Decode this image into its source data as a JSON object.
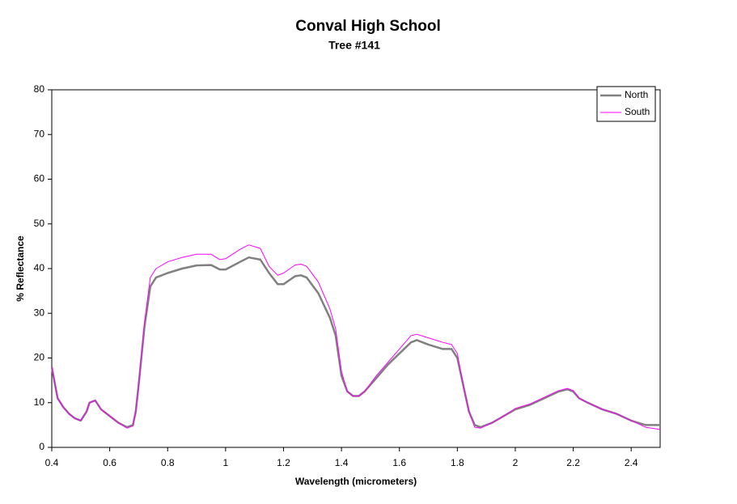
{
  "chart_data": {
    "type": "line",
    "title": "Conval High School",
    "subtitle": "Tree #141",
    "xlabel": "Wavelength (micrometers)",
    "ylabel": "% Reflectance",
    "x": [
      0.4,
      0.42,
      0.44,
      0.46,
      0.48,
      0.5,
      0.52,
      0.53,
      0.55,
      0.57,
      0.6,
      0.63,
      0.66,
      0.68,
      0.69,
      0.7,
      0.72,
      0.74,
      0.76,
      0.8,
      0.85,
      0.9,
      0.95,
      0.98,
      1.0,
      1.05,
      1.08,
      1.12,
      1.15,
      1.18,
      1.2,
      1.24,
      1.26,
      1.28,
      1.32,
      1.36,
      1.38,
      1.4,
      1.42,
      1.44,
      1.46,
      1.48,
      1.52,
      1.56,
      1.6,
      1.64,
      1.66,
      1.7,
      1.75,
      1.78,
      1.8,
      1.82,
      1.84,
      1.86,
      1.88,
      1.92,
      1.96,
      2.0,
      2.05,
      2.1,
      2.15,
      2.18,
      2.2,
      2.22,
      2.25,
      2.3,
      2.35,
      2.4,
      2.45,
      2.5
    ],
    "series": [
      {
        "name": "North",
        "color": "#808080",
        "values": [
          18,
          11,
          9,
          7.5,
          6.5,
          6,
          8,
          10,
          10.5,
          8.5,
          7,
          5.5,
          4.5,
          5,
          8,
          14,
          27,
          36,
          38,
          39,
          40,
          40.7,
          40.8,
          39.8,
          39.8,
          41.5,
          42.5,
          42,
          39,
          36.5,
          36.5,
          38.3,
          38.5,
          38,
          34.5,
          29,
          25,
          16,
          12.5,
          11.5,
          11.5,
          12.5,
          15.5,
          18.5,
          21,
          23.5,
          24,
          23,
          22,
          22,
          20,
          14,
          8,
          5,
          4.5,
          5.5,
          7,
          8.5,
          9.5,
          11,
          12.5,
          13,
          12.5,
          11,
          10,
          8.5,
          7.5,
          6,
          5,
          5
        ]
      },
      {
        "name": "South",
        "color": "#ff00ff",
        "values": [
          18,
          11,
          9,
          7.5,
          6.5,
          6,
          8,
          10,
          10.5,
          8.5,
          7,
          5.5,
          4.3,
          4.8,
          8,
          14,
          28,
          38,
          40,
          41.5,
          42.5,
          43.2,
          43.2,
          42,
          42.2,
          44.3,
          45.3,
          44.5,
          40.5,
          38.5,
          39,
          40.8,
          41,
          40.5,
          37,
          31,
          26.5,
          17,
          12.5,
          11.5,
          11.5,
          12.5,
          16,
          19,
          22,
          25,
          25.3,
          24.5,
          23.5,
          23,
          21,
          14,
          8,
          4.5,
          4.3,
          5.5,
          7,
          8.7,
          9.7,
          11.2,
          12.7,
          13.2,
          12.7,
          11,
          10,
          8.5,
          7.5,
          6,
          4.5,
          4
        ]
      }
    ],
    "xlim": [
      0.4,
      2.5
    ],
    "xticks": [
      0.4,
      0.6,
      0.8,
      1,
      1.2,
      1.4,
      1.6,
      1.8,
      2,
      2.2,
      2.4
    ],
    "ylim": [
      0,
      80
    ],
    "yticks": [
      0,
      10,
      20,
      30,
      40,
      50,
      60,
      70,
      80
    ],
    "grid": false,
    "legend": "top-right"
  }
}
